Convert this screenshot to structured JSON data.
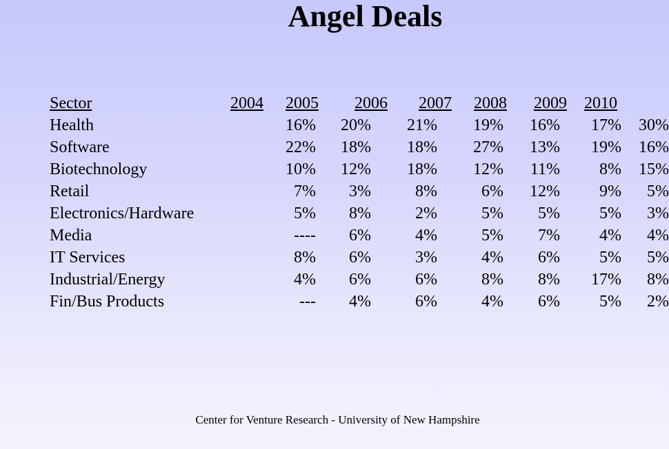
{
  "title": "Angel Deals",
  "table": {
    "header": [
      "Sector",
      "2004",
      "2005",
      "2006",
      "2007",
      "2008",
      "2009",
      "2010"
    ],
    "rows": [
      [
        "Health",
        "16%",
        "20%",
        "21%",
        "19%",
        "16%",
        "17%",
        "30%"
      ],
      [
        "Software",
        "22%",
        "18%",
        "18%",
        "27%",
        "13%",
        "19%",
        "16%"
      ],
      [
        "Biotechnology",
        "10%",
        "12%",
        "18%",
        "12%",
        "11%",
        "8%",
        "15%"
      ],
      [
        "Retail",
        "7%",
        "3%",
        "8%",
        "6%",
        "12%",
        "9%",
        "5%"
      ],
      [
        "Electronics/Hardware",
        "5%",
        "8%",
        "2%",
        "5%",
        "5%",
        "5%",
        "3%"
      ],
      [
        "Media",
        "----",
        "6%",
        "4%",
        "5%",
        "7%",
        "4%",
        "4%"
      ],
      [
        "IT Services",
        "8%",
        "6%",
        "3%",
        "4%",
        "6%",
        "5%",
        "5%"
      ],
      [
        "Industrial/Energy",
        "4%",
        "6%",
        "6%",
        "8%",
        "8%",
        "17%",
        "8%"
      ],
      [
        "Fin/Bus Products",
        "---",
        "4%",
        "6%",
        "4%",
        "6%",
        "5%",
        "2%"
      ]
    ]
  },
  "footer": "Center for Venture Research - University of New Hampshire"
}
